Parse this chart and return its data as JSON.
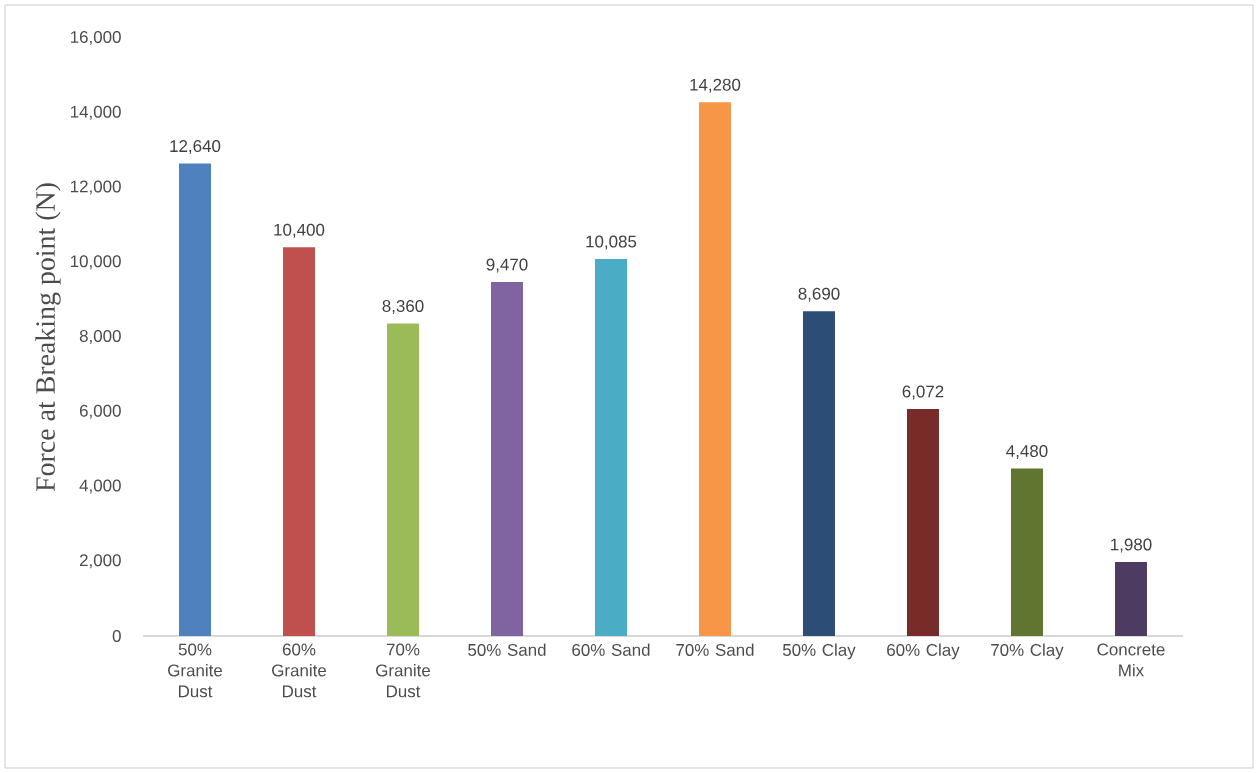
{
  "chart_data": {
    "type": "bar",
    "ylabel": "Force at Breaking point (N)",
    "categories": [
      "50% Granite Dust",
      "60% Granite Dust",
      "70% Granite Dust",
      "50% Sand",
      "60% Sand",
      "70% Sand",
      "50% Clay",
      "60% Clay",
      "70% Clay",
      "Concrete Mix"
    ],
    "values": [
      12640,
      10400,
      8360,
      9470,
      10085,
      14280,
      8690,
      6072,
      4480,
      1980
    ],
    "value_labels": [
      "12,640",
      "10,400",
      "8,360",
      "9,470",
      "10,085",
      "14,280",
      "8,690",
      "6,072",
      "4,480",
      "1,980"
    ],
    "colors": [
      "#4f81bd",
      "#c0504d",
      "#9bbb59",
      "#8064a2",
      "#4bacc6",
      "#f79646",
      "#2c4d75",
      "#772c2a",
      "#5f7530",
      "#4d3b62"
    ],
    "ylim": [
      0,
      16000
    ],
    "yticks": [
      {
        "value": 0,
        "label": "0"
      },
      {
        "value": 2000,
        "label": "2,000"
      },
      {
        "value": 4000,
        "label": "4,000"
      },
      {
        "value": 6000,
        "label": "6,000"
      },
      {
        "value": 8000,
        "label": "8,000"
      },
      {
        "value": 10000,
        "label": "10,000"
      },
      {
        "value": 12000,
        "label": "12,000"
      },
      {
        "value": 14000,
        "label": "14,000"
      },
      {
        "value": 16000,
        "label": "16,000"
      }
    ],
    "grid": false
  }
}
